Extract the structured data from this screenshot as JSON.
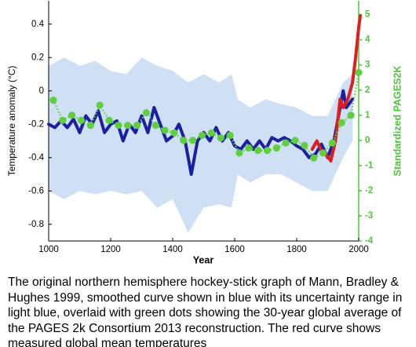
{
  "chart_data": {
    "type": "line",
    "x_label": "Year",
    "y_label": "Temperature anomaly (°C)",
    "y2_label": "Standardized PAGES2K",
    "xlim": [
      1000,
      2000
    ],
    "xticks": [
      1000,
      1200,
      1400,
      1600,
      1800,
      2000
    ],
    "ylim": [
      -0.9,
      0.54
    ],
    "yticks": [
      0.4,
      0.2,
      0,
      -0.2,
      -0.4,
      -0.6,
      -0.8
    ],
    "y2lim": [
      -4,
      5.55
    ],
    "y2ticks": [
      5,
      4,
      3,
      2,
      1,
      0,
      -1,
      -2,
      -3,
      -4
    ],
    "y2_color": "#4cc63a",
    "band": {
      "color": "#cfe0f5",
      "x": [
        1000,
        1050,
        1100,
        1150,
        1200,
        1250,
        1300,
        1350,
        1400,
        1450,
        1500,
        1550,
        1590,
        1610,
        1650,
        1700,
        1750,
        1800,
        1850,
        1900,
        1950,
        1980
      ],
      "upper": [
        0.15,
        0.2,
        0.15,
        0.18,
        0.12,
        0.1,
        0.2,
        0.15,
        0.12,
        0.05,
        0.1,
        0.05,
        0.1,
        -0.05,
        -0.1,
        -0.05,
        -0.08,
        -0.1,
        -0.15,
        -0.15,
        0.05,
        0.1
      ],
      "lower": [
        -0.6,
        -0.65,
        -0.6,
        -0.62,
        -0.6,
        -0.62,
        -0.6,
        -0.7,
        -0.65,
        -0.85,
        -0.7,
        -0.68,
        -0.7,
        -0.5,
        -0.55,
        -0.5,
        -0.5,
        -0.55,
        -0.6,
        -0.6,
        -0.4,
        -0.3
      ]
    },
    "series": [
      {
        "color": "#1b1fa0",
        "x": [
          1000,
          1020,
          1040,
          1060,
          1080,
          1100,
          1120,
          1140,
          1160,
          1180,
          1200,
          1220,
          1240,
          1260,
          1280,
          1300,
          1320,
          1340,
          1360,
          1380,
          1400,
          1420,
          1440,
          1460,
          1480,
          1500,
          1520,
          1540,
          1560,
          1580,
          1600,
          1620,
          1640,
          1660,
          1680,
          1700,
          1720,
          1740,
          1760,
          1780,
          1800,
          1820,
          1840,
          1860,
          1880,
          1900,
          1920,
          1940,
          1950,
          1960,
          1980
        ],
        "values": [
          -0.2,
          -0.22,
          -0.18,
          -0.22,
          -0.17,
          -0.25,
          -0.15,
          -0.2,
          -0.12,
          -0.25,
          -0.2,
          -0.18,
          -0.3,
          -0.2,
          -0.25,
          -0.15,
          -0.25,
          -0.1,
          -0.2,
          -0.3,
          -0.27,
          -0.2,
          -0.3,
          -0.5,
          -0.3,
          -0.25,
          -0.3,
          -0.22,
          -0.3,
          -0.25,
          -0.33,
          -0.35,
          -0.3,
          -0.35,
          -0.3,
          -0.35,
          -0.28,
          -0.3,
          -0.28,
          -0.3,
          -0.33,
          -0.35,
          -0.4,
          -0.38,
          -0.32,
          -0.4,
          -0.3,
          -0.1,
          0.0,
          -0.1,
          -0.05
        ]
      },
      {
        "color": "#e01e1e",
        "x": [
          1850,
          1865,
          1880,
          1895,
          1910,
          1925,
          1940,
          1950,
          1965,
          1980,
          1990,
          2000,
          2005
        ],
        "values": [
          -0.35,
          -0.3,
          -0.36,
          -0.38,
          -0.42,
          -0.3,
          -0.05,
          -0.1,
          -0.05,
          0.05,
          0.2,
          0.38,
          0.45
        ]
      },
      {
        "color": "#5fcf40",
        "axis": "y2",
        "style": "dots",
        "x": [
          1015,
          1045,
          1075,
          1105,
          1135,
          1165,
          1195,
          1225,
          1255,
          1285,
          1315,
          1345,
          1375,
          1405,
          1435,
          1465,
          1495,
          1525,
          1555,
          1585,
          1615,
          1645,
          1675,
          1705,
          1735,
          1765,
          1795,
          1825,
          1855,
          1885,
          1915,
          1945,
          1975,
          2000
        ],
        "values": [
          1.6,
          0.8,
          1.0,
          0.8,
          0.6,
          1.4,
          0.8,
          0.6,
          0.6,
          0.6,
          1.1,
          0.6,
          0.4,
          0.3,
          0.0,
          0.0,
          0.2,
          0.3,
          0.1,
          0.2,
          -0.5,
          -0.3,
          -0.4,
          -0.4,
          -0.3,
          -0.1,
          0.0,
          -0.2,
          -0.7,
          -0.5,
          -0.1,
          0.7,
          1.0,
          2.7
        ]
      }
    ]
  },
  "caption": "The original northern hemisphere hockey-stick graph of Mann, Bradley & Hughes 1999, smoothed curve shown in blue with its uncertainty range in light blue, overlaid with green dots showing the 30-year global average of the PAGES 2k Consortium 2013 reconstruction. The red curve shows measured global mean temperatures"
}
